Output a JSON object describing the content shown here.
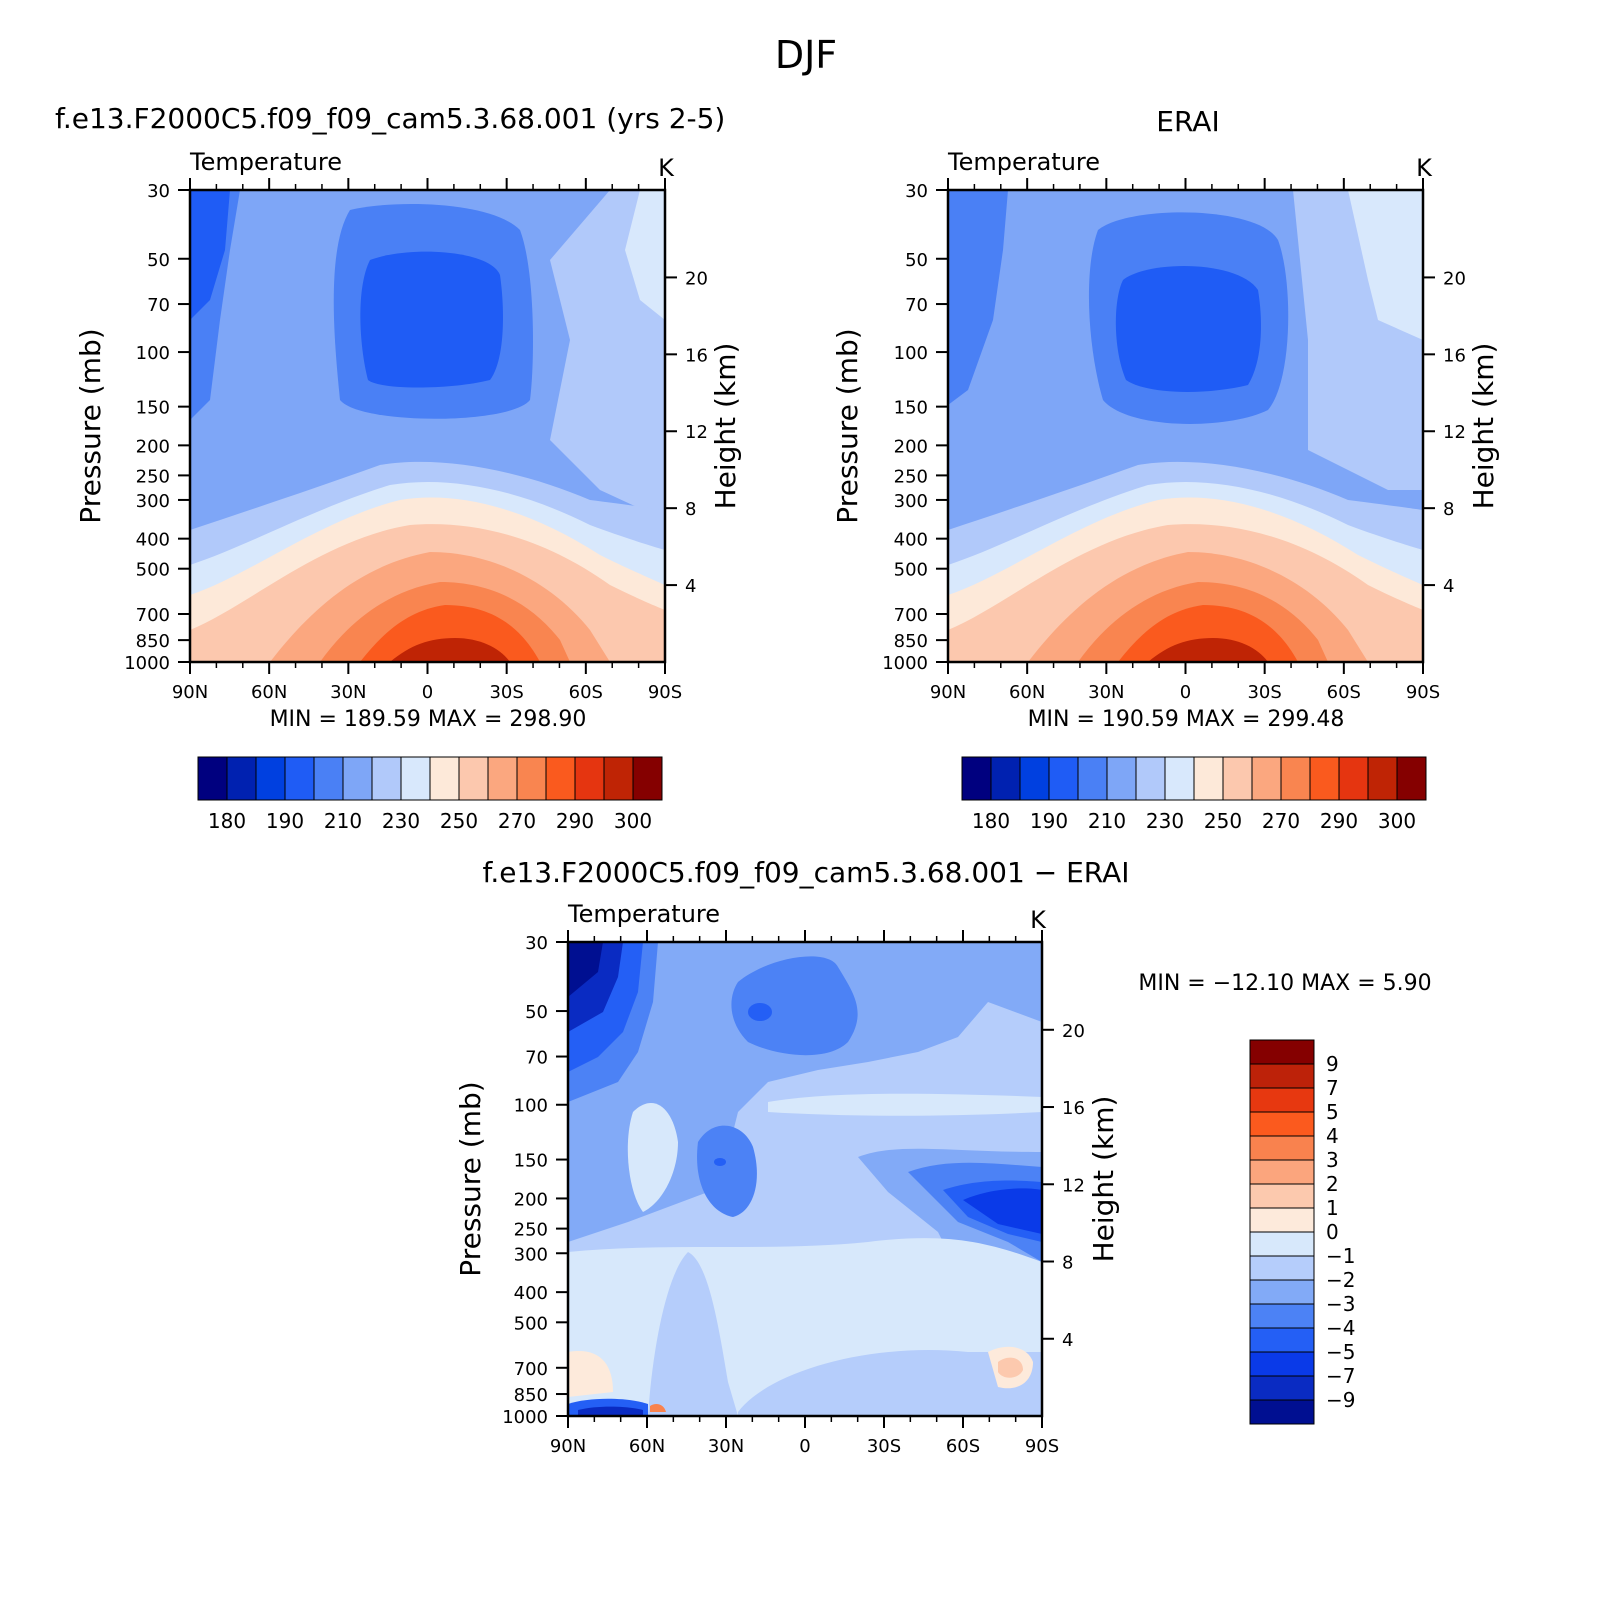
{
  "page_title": "DJF",
  "colors": {
    "abs_palette": [
      "#00007f",
      "#0021b0",
      "#0040e0",
      "#1f5cf5",
      "#4a80f5",
      "#7ea6f7",
      "#b1c9fa",
      "#d8e8fc",
      "#fde9d9",
      "#fcc8ae",
      "#fba77f",
      "#f98550",
      "#fa5a1e",
      "#e53510",
      "#bf2405",
      "#850000"
    ],
    "diff_palette": [
      "#000f91",
      "#0a2bc2",
      "#0a3ae8",
      "#245ff5",
      "#4c82f5",
      "#82aaf7",
      "#b5cdfb",
      "#d7e8fb",
      "#fdeadb",
      "#fcc9ae",
      "#fba57d",
      "#f9824e",
      "#fb5a1e",
      "#e73810",
      "#bd2209",
      "#850000"
    ]
  },
  "chart_data": [
    {
      "type": "contour",
      "panel": "model",
      "title": "f.e13.F2000C5.f09_f09_cam5.3.68.001 (yrs 2-5)",
      "variable_label": "Temperature",
      "units": "K",
      "ylabel": "Pressure (mb)",
      "ylabel_right": "Height (km)",
      "pressure_ticks": [
        "30",
        "50",
        "70",
        "100",
        "150",
        "200",
        "250",
        "300",
        "400",
        "500",
        "700",
        "850",
        "1000"
      ],
      "height_ticks": [
        "20",
        "16",
        "12",
        "8",
        "4"
      ],
      "x_ticks": [
        "90N",
        "60N",
        "30N",
        "0",
        "30S",
        "60S",
        "90S"
      ],
      "stats_text": "MIN = 189.59 MAX = 298.90",
      "min": 189.59,
      "max": 298.9,
      "colorbar_labels": [
        "180",
        "190",
        "210",
        "230",
        "250",
        "270",
        "290",
        "300"
      ]
    },
    {
      "type": "contour",
      "panel": "obs",
      "title": "ERAI",
      "variable_label": "Temperature",
      "units": "K",
      "ylabel": "Pressure (mb)",
      "ylabel_right": "Height (km)",
      "pressure_ticks": [
        "30",
        "50",
        "70",
        "100",
        "150",
        "200",
        "250",
        "300",
        "400",
        "500",
        "700",
        "850",
        "1000"
      ],
      "height_ticks": [
        "20",
        "16",
        "12",
        "8",
        "4"
      ],
      "x_ticks": [
        "90N",
        "60N",
        "30N",
        "0",
        "30S",
        "60S",
        "90S"
      ],
      "stats_text": "MIN = 190.59 MAX = 299.48",
      "min": 190.59,
      "max": 299.48,
      "colorbar_labels": [
        "180",
        "190",
        "210",
        "230",
        "250",
        "270",
        "290",
        "300"
      ]
    },
    {
      "type": "contour",
      "panel": "diff",
      "title": "f.e13.F2000C5.f09_f09_cam5.3.68.001 − ERAI",
      "variable_label": "Temperature",
      "units": "K",
      "ylabel": "Pressure (mb)",
      "ylabel_right": "Height (km)",
      "pressure_ticks": [
        "30",
        "50",
        "70",
        "100",
        "150",
        "200",
        "250",
        "300",
        "400",
        "500",
        "700",
        "850",
        "1000"
      ],
      "height_ticks": [
        "20",
        "16",
        "12",
        "8",
        "4"
      ],
      "x_ticks": [
        "90N",
        "60N",
        "30N",
        "0",
        "30S",
        "60S",
        "90S"
      ],
      "stats_text": "MIN = −12.10 MAX = 5.90",
      "min": -12.1,
      "max": 5.9,
      "colorbar_labels": [
        "9",
        "7",
        "5",
        "4",
        "3",
        "2",
        "1",
        "0",
        "−1",
        "−2",
        "−3",
        "−4",
        "−5",
        "−7",
        "−9"
      ]
    }
  ]
}
